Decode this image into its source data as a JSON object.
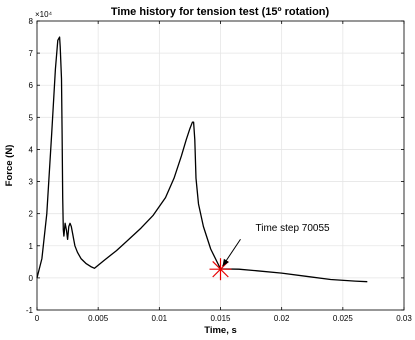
{
  "chart_data": {
    "type": "line",
    "title": "Time history for tension test (15º rotation)",
    "xlabel": "Time, s",
    "ylabel": "Force (N)",
    "y_exponent_label": "×10⁴",
    "xlim": [
      0,
      0.03
    ],
    "ylim": [
      -1,
      8
    ],
    "y_scale_note": "values in units of 10^4 N",
    "grid": true,
    "x_ticks": [
      0,
      0.005,
      0.01,
      0.015,
      0.02,
      0.025,
      0.03
    ],
    "x_tick_labels": [
      "0",
      "0.005",
      "0.01",
      "0.015",
      "0.02",
      "0.025",
      "0.03"
    ],
    "y_ticks": [
      -1,
      0,
      1,
      2,
      3,
      4,
      5,
      6,
      7,
      8
    ],
    "y_tick_labels": [
      "-1",
      "0",
      "1",
      "2",
      "3",
      "4",
      "5",
      "6",
      "7",
      "8"
    ],
    "series": [
      {
        "color": "#000000",
        "x": [
          0,
          0.0004,
          0.0008,
          0.0012,
          0.0015,
          0.0017,
          0.00185,
          0.0019,
          0.002,
          0.00205,
          0.0021,
          0.00215,
          0.0022,
          0.0023,
          0.0024,
          0.0025,
          0.0026,
          0.0027,
          0.0028,
          0.0029,
          0.003,
          0.0031,
          0.0033,
          0.0036,
          0.004,
          0.0044,
          0.0047,
          0.0055,
          0.0065,
          0.0075,
          0.0085,
          0.0095,
          0.0105,
          0.0112,
          0.0118,
          0.0122,
          0.0125,
          0.0127,
          0.0128,
          0.0129,
          0.013,
          0.0132,
          0.0136,
          0.0142,
          0.015,
          0.0165,
          0.018,
          0.02,
          0.022,
          0.024,
          0.026,
          0.027
        ],
        "values": [
          0.0,
          0.6,
          2.0,
          4.5,
          6.5,
          7.4,
          7.5,
          7.2,
          6.2,
          4.5,
          2.5,
          1.5,
          1.3,
          1.7,
          1.5,
          1.2,
          1.6,
          1.7,
          1.6,
          1.4,
          1.2,
          1.0,
          0.8,
          0.6,
          0.45,
          0.35,
          0.3,
          0.55,
          0.85,
          1.2,
          1.55,
          1.95,
          2.5,
          3.1,
          3.8,
          4.3,
          4.65,
          4.85,
          4.85,
          4.3,
          3.1,
          2.3,
          1.6,
          0.9,
          0.28,
          0.27,
          0.22,
          0.15,
          0.05,
          -0.05,
          -0.1,
          -0.12
        ]
      }
    ],
    "marker": {
      "x": 0.015,
      "y": 0.27,
      "symbol": "*",
      "color": "#e60000"
    },
    "annotation": {
      "text": "Time step 70055",
      "x": 0.015,
      "y": 0.27
    }
  }
}
